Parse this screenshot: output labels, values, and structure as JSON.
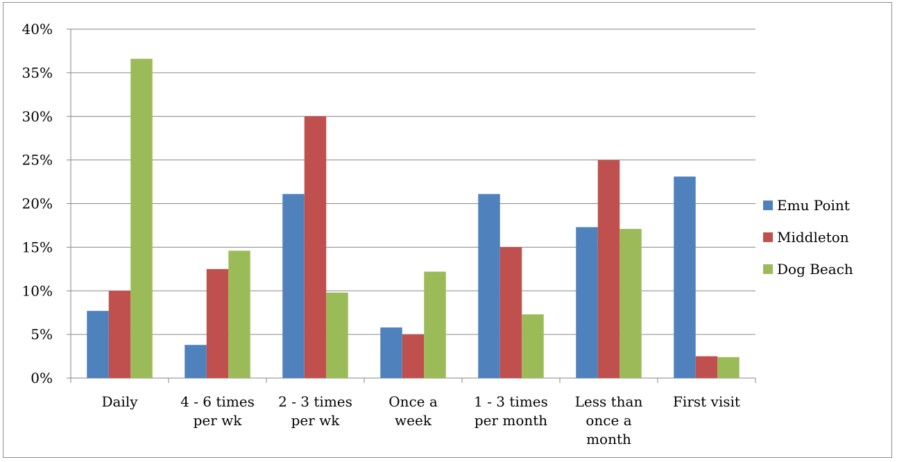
{
  "chart_data": {
    "type": "bar",
    "title": "",
    "xlabel": "",
    "ylabel": "",
    "ylim": [
      0,
      0.4
    ],
    "yticks": [
      "0%",
      "5%",
      "10%",
      "15%",
      "20%",
      "25%",
      "30%",
      "35%",
      "40%"
    ],
    "grid": "horizontal",
    "legend_position": "right",
    "categories": [
      [
        "Daily"
      ],
      [
        "4 - 6 times",
        "per wk"
      ],
      [
        "2 - 3 times",
        "per wk"
      ],
      [
        "Once a",
        "week"
      ],
      [
        "1 - 3 times",
        "per month"
      ],
      [
        "Less than",
        "once a",
        "month"
      ],
      [
        "First visit"
      ]
    ],
    "series": [
      {
        "name": "Emu Point",
        "color": "#4f81bd",
        "values": [
          0.077,
          0.038,
          0.211,
          0.058,
          0.211,
          0.173,
          0.231
        ]
      },
      {
        "name": "Middleton",
        "color": "#c0504d",
        "values": [
          0.1,
          0.125,
          0.3,
          0.05,
          0.15,
          0.25,
          0.025
        ]
      },
      {
        "name": "Dog Beach",
        "color": "#9bbb59",
        "values": [
          0.366,
          0.146,
          0.098,
          0.122,
          0.073,
          0.171,
          0.024
        ]
      }
    ]
  }
}
